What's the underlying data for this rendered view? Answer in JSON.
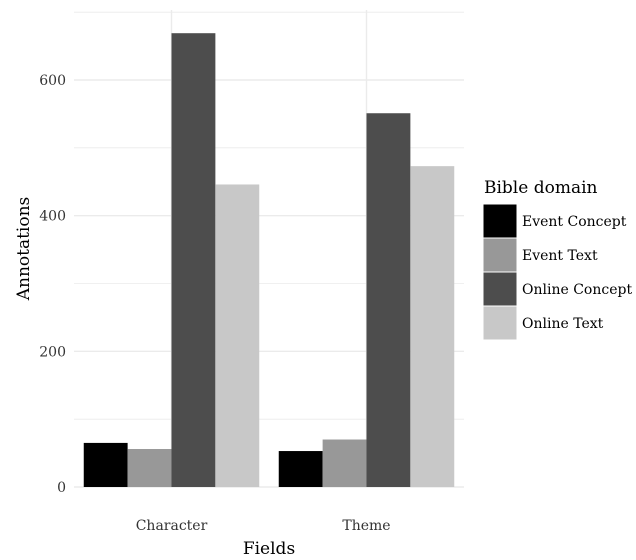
{
  "chart_data": {
    "type": "bar",
    "categories": [
      "Character",
      "Theme"
    ],
    "series": [
      {
        "name": "Event Concept",
        "color": "#000000",
        "values": [
          65,
          53
        ]
      },
      {
        "name": "Event Text",
        "color": "#989898",
        "values": [
          56,
          70
        ]
      },
      {
        "name": "Online Concept",
        "color": "#4d4d4d",
        "values": [
          669,
          551
        ]
      },
      {
        "name": "Online Text",
        "color": "#c8c8c8",
        "values": [
          446,
          473
        ]
      }
    ],
    "xlabel": "Fields",
    "ylabel": "Annotations",
    "ylim": [
      0,
      700
    ],
    "yticks": [
      0,
      200,
      400,
      600
    ],
    "grid": true,
    "legend": {
      "title": "Bible domain",
      "position": "right"
    }
  }
}
